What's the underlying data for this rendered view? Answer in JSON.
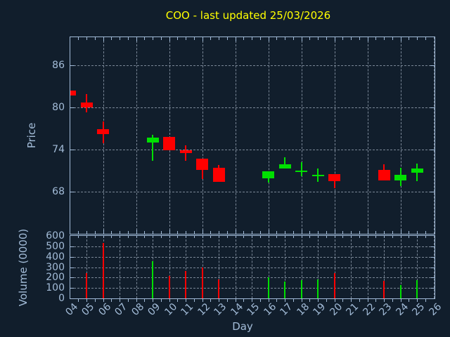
{
  "title": "COO - last updated 25/03/2026",
  "chart_data": {
    "type": "candlestick",
    "title": "COO - last updated 25/03/2026",
    "xlabel": "Day",
    "x_tick_labels": [
      "04",
      "05",
      "06",
      "07",
      "08",
      "09",
      "10",
      "11",
      "12",
      "13",
      "14",
      "15",
      "16",
      "17",
      "18",
      "19",
      "20",
      "21",
      "22",
      "23",
      "24",
      "25",
      "26"
    ],
    "x_domain_days": [
      4,
      26
    ],
    "price_panel": {
      "ylabel": "Price",
      "ylim": [
        62,
        90
      ],
      "yticks": [
        68,
        74,
        80,
        86
      ],
      "grid_x_step_days": 2
    },
    "volume_panel": {
      "ylabel": "Volume (0000)",
      "ylim": [
        0,
        600
      ],
      "yticks": [
        0,
        100,
        200,
        300,
        400,
        500,
        600
      ],
      "grid_x_step_days": 1
    },
    "ohlcv": [
      {
        "day": 4,
        "open": 82.4,
        "high": 82.4,
        "low": 81.7,
        "close": 81.7,
        "volume": 0
      },
      {
        "day": 5,
        "open": 80.7,
        "high": 81.9,
        "low": 79.3,
        "close": 80.0,
        "volume": 240
      },
      {
        "day": 6,
        "open": 76.9,
        "high": 78.0,
        "low": 74.9,
        "close": 76.2,
        "volume": 530
      },
      {
        "day": 9,
        "open": 75.0,
        "high": 76.1,
        "low": 72.4,
        "close": 75.7,
        "volume": 360
      },
      {
        "day": 10,
        "open": 75.8,
        "high": 75.8,
        "low": 73.9,
        "close": 73.9,
        "volume": 215
      },
      {
        "day": 11,
        "open": 73.9,
        "high": 74.6,
        "low": 72.4,
        "close": 73.5,
        "volume": 260
      },
      {
        "day": 12,
        "open": 72.7,
        "high": 72.7,
        "low": 69.8,
        "close": 71.1,
        "volume": 300
      },
      {
        "day": 13,
        "open": 71.4,
        "high": 71.8,
        "low": 69.4,
        "close": 69.4,
        "volume": 180
      },
      {
        "day": 16,
        "open": 69.9,
        "high": 70.9,
        "low": 69.3,
        "close": 70.9,
        "volume": 205
      },
      {
        "day": 17,
        "open": 71.3,
        "high": 72.9,
        "low": 71.3,
        "close": 71.9,
        "volume": 165
      },
      {
        "day": 18,
        "open": 70.8,
        "high": 72.2,
        "low": 70.2,
        "close": 71.0,
        "volume": 175
      },
      {
        "day": 19,
        "open": 70.2,
        "high": 71.3,
        "low": 69.4,
        "close": 70.4,
        "volume": 180
      },
      {
        "day": 20,
        "open": 70.5,
        "high": 70.5,
        "low": 68.5,
        "close": 69.5,
        "volume": 240
      },
      {
        "day": 23,
        "open": 71.1,
        "high": 71.9,
        "low": 69.6,
        "close": 69.6,
        "volume": 170
      },
      {
        "day": 24,
        "open": 69.6,
        "high": 71.4,
        "low": 68.8,
        "close": 70.4,
        "volume": 125
      },
      {
        "day": 25,
        "open": 70.7,
        "high": 72.0,
        "low": 69.5,
        "close": 71.3,
        "volume": 175
      }
    ],
    "colors": {
      "up": "#00e000",
      "down": "#ff0000",
      "background": "#111e2c",
      "axis": "#a2bbd8",
      "grid": "#8d9aaa",
      "title": "#ffff00"
    },
    "legend": "none",
    "grid": "on"
  }
}
